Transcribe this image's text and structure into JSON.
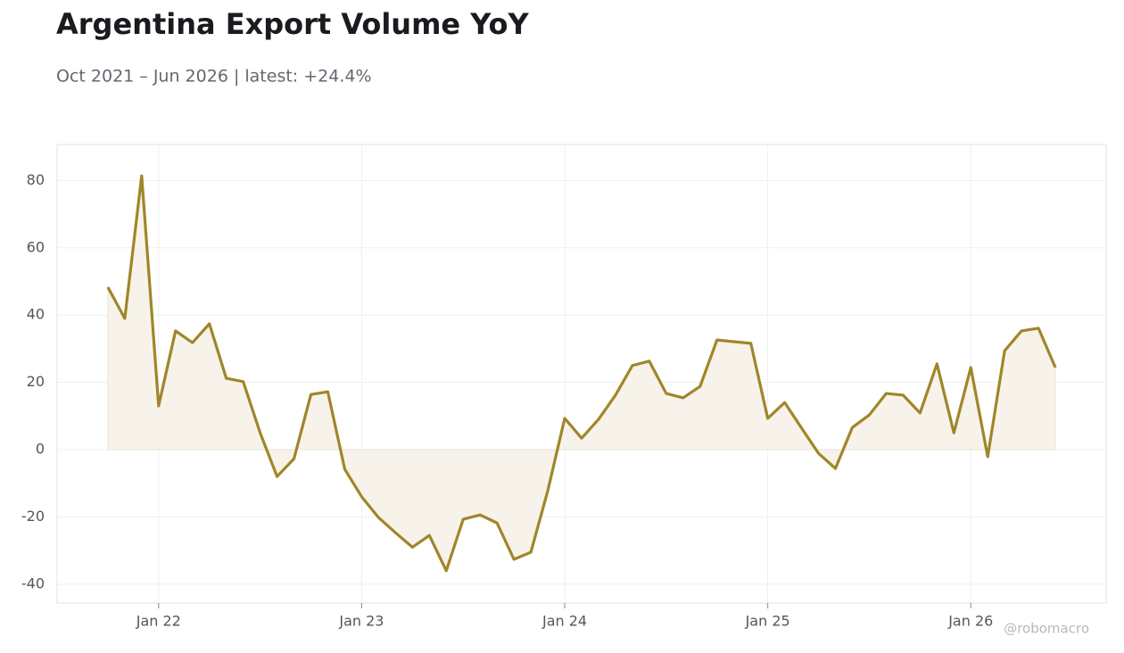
{
  "chart_data": {
    "type": "line",
    "title": "Argentina Export Volume YoY",
    "subtitle": "Oct 2021 – Jun 2026 | latest: +24.4%",
    "watermark": "@robomacro",
    "x": [
      "2021-10",
      "2021-11",
      "2021-12",
      "2022-01",
      "2022-02",
      "2022-03",
      "2022-04",
      "2022-05",
      "2022-06",
      "2022-07",
      "2022-08",
      "2022-09",
      "2022-10",
      "2022-11",
      "2022-12",
      "2023-01",
      "2023-02",
      "2023-03",
      "2023-04",
      "2023-05",
      "2023-06",
      "2023-07",
      "2023-08",
      "2023-09",
      "2023-10",
      "2023-11",
      "2023-12",
      "2024-01",
      "2024-02",
      "2024-03",
      "2024-04",
      "2024-05",
      "2024-06",
      "2024-07",
      "2024-08",
      "2024-09",
      "2024-10",
      "2024-11",
      "2024-12",
      "2025-01",
      "2025-02",
      "2025-03",
      "2025-04",
      "2025-05",
      "2025-06",
      "2025-07",
      "2025-08",
      "2025-09",
      "2025-10",
      "2025-11",
      "2025-12",
      "2026-01",
      "2026-02",
      "2026-03",
      "2026-04",
      "2026-05",
      "2026-06"
    ],
    "series": [
      {
        "name": "Export Volume YoY",
        "color": "#a0862a",
        "fill": "#f7f3ea",
        "values": [
          48.3,
          39,
          81.4,
          13,
          35.3,
          31.8,
          37.4,
          21.2,
          20.2,
          5,
          -8,
          -2.7,
          16.4,
          17.2,
          -5.8,
          -14,
          -20.2,
          -24.7,
          -29,
          -25.5,
          -36,
          -20.7,
          -19.4,
          -21.8,
          -32.6,
          -30.5,
          -12.2,
          9.3,
          3.4,
          9,
          16.2,
          25,
          26.3,
          16.7,
          15.4,
          18.8,
          32.6,
          32.1,
          31.6,
          9.3,
          14,
          6.4,
          -1.1,
          -5.6,
          6.6,
          10.3,
          16.7,
          16.2,
          10.9,
          25.5,
          5,
          24.4,
          -2.1,
          29.4,
          35.3,
          36.1,
          24.4
        ]
      }
    ],
    "xlim": [
      "2021-07",
      "2026-09"
    ],
    "xticks": [
      {
        "value": "2022-01",
        "label": "Jan 22"
      },
      {
        "value": "2023-01",
        "label": "Jan 23"
      },
      {
        "value": "2024-01",
        "label": "Jan 24"
      },
      {
        "value": "2025-01",
        "label": "Jan 25"
      },
      {
        "value": "2026-01",
        "label": "Jan 26"
      }
    ],
    "ylim": [
      -45.6,
      90.7
    ],
    "yticks": [
      -40,
      -20,
      0,
      20,
      40,
      60,
      80
    ],
    "grid": true
  }
}
